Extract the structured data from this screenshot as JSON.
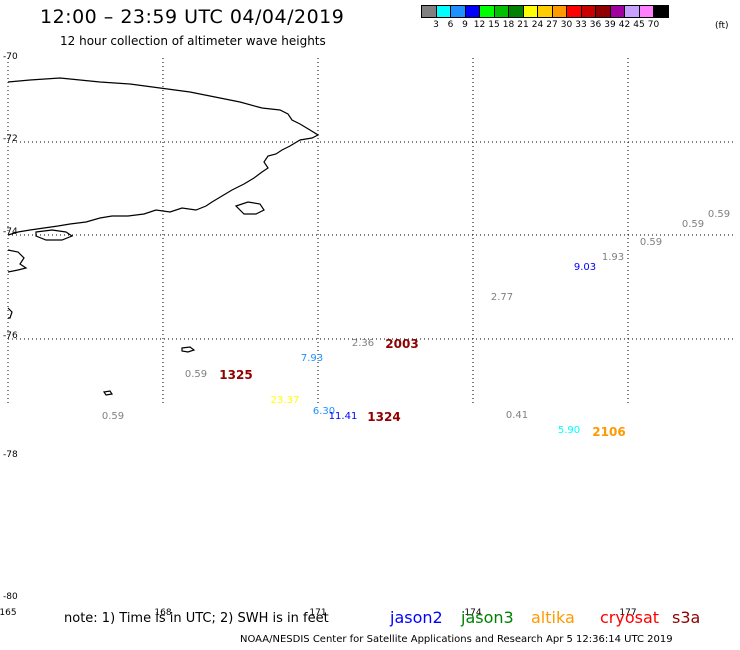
{
  "title": "12:00 – 23:59 UTC 04/04/2019",
  "subtitle": "12 hour collection of altimeter wave heights",
  "legend": {
    "unit": "(ft)",
    "colors": [
      "#808080",
      "#00ffff",
      "#1e90ff",
      "#0000ff",
      "#00ff00",
      "#00c000",
      "#008000",
      "#ffff00",
      "#ffcc00",
      "#ff9900",
      "#ff0000",
      "#c80000",
      "#900000",
      "#a000a0",
      "#c8a0ff",
      "#ff80ff",
      "#000000"
    ],
    "labels": [
      "3",
      "6",
      "9",
      "12",
      "15",
      "18",
      "21",
      "24",
      "27",
      "30",
      "33",
      "36",
      "39",
      "42",
      "45",
      "70"
    ]
  },
  "latitude_labels": [
    "-70",
    "-72",
    "-74",
    "-76",
    "-78",
    "-80"
  ],
  "longitude_labels": [
    "165",
    "168",
    "171",
    "174",
    "177"
  ],
  "observations": [
    {
      "text": "0.59",
      "color": "#808080"
    },
    {
      "text": "0.59",
      "color": "#808080"
    },
    {
      "text": "0.59",
      "color": "#808080"
    },
    {
      "text": "1.93",
      "color": "#808080"
    },
    {
      "text": "9.03",
      "color": "#0000ff"
    },
    {
      "text": "2.77",
      "color": "#808080"
    },
    {
      "text": "2.36",
      "color": "#808080"
    },
    {
      "text": "2003",
      "color": "#900000"
    },
    {
      "text": "7.93",
      "color": "#1e90ff"
    },
    {
      "text": "0.59",
      "color": "#808080"
    },
    {
      "text": "1325",
      "color": "#900000"
    },
    {
      "text": "23.37",
      "color": "#ffff00"
    },
    {
      "text": "6.30",
      "color": "#1e90ff"
    },
    {
      "text": "11.41",
      "color": "#0000ff"
    },
    {
      "text": "1324",
      "color": "#900000"
    },
    {
      "text": "0.59",
      "color": "#808080"
    },
    {
      "text": "0.41",
      "color": "#808080"
    },
    {
      "text": "5.90",
      "color": "#00ffff"
    },
    {
      "text": "2106",
      "color": "#ff9900"
    }
  ],
  "note": "note: 1) Time is in UTC; 2) SWH is in feet",
  "satellites": [
    {
      "name": "jason2",
      "color": "#0000ff"
    },
    {
      "name": "jason3",
      "color": "#008000"
    },
    {
      "name": "altika",
      "color": "#ff9900"
    },
    {
      "name": "cryosat",
      "color": "#ff0000"
    },
    {
      "name": "s3a",
      "color": "#900000"
    }
  ],
  "footer": "NOAA/NESDIS Center for Satellite Applications and Research    Apr  5 12:36:14 UTC 2019"
}
